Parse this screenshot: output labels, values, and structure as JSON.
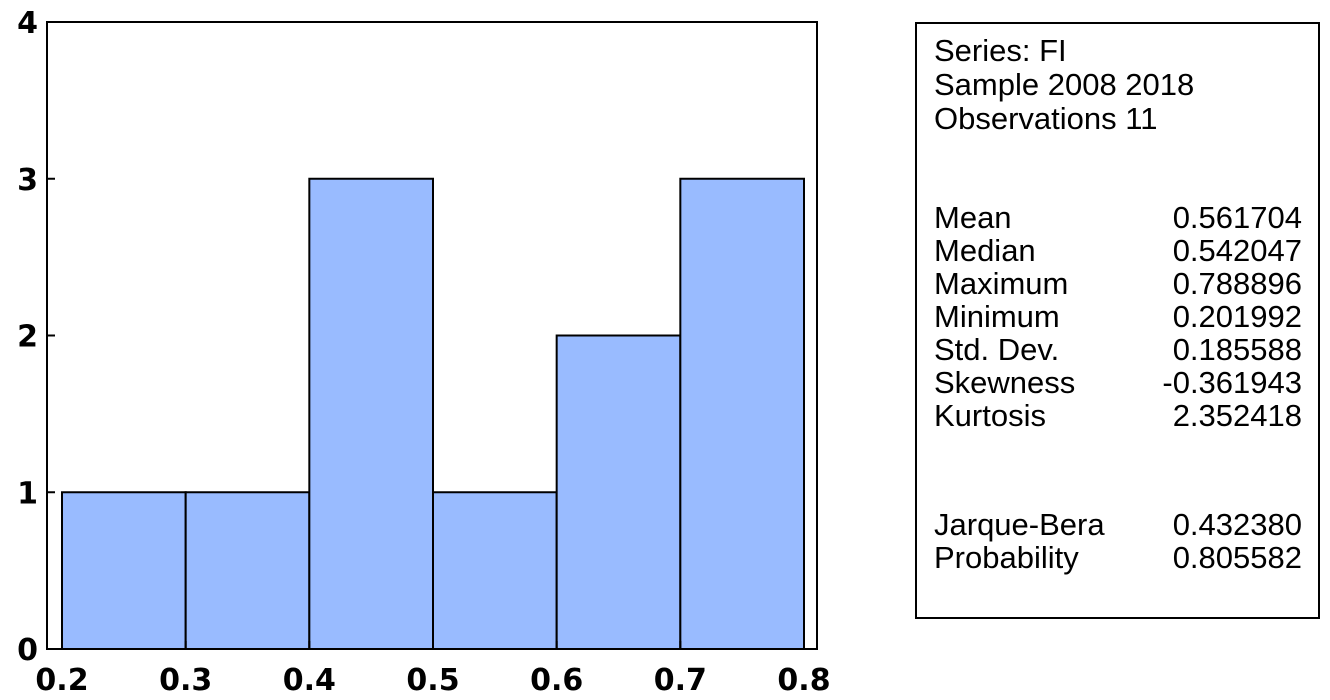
{
  "chart_data": {
    "type": "bar",
    "bins": [
      {
        "from": 0.2,
        "to": 0.3,
        "count": 1
      },
      {
        "from": 0.3,
        "to": 0.4,
        "count": 1
      },
      {
        "from": 0.4,
        "to": 0.5,
        "count": 3
      },
      {
        "from": 0.5,
        "to": 0.6,
        "count": 1
      },
      {
        "from": 0.6,
        "to": 0.7,
        "count": 2
      },
      {
        "from": 0.7,
        "to": 0.8,
        "count": 3
      }
    ],
    "xlim": [
      0.2,
      0.8
    ],
    "ylim": [
      0,
      4
    ],
    "x_ticks": [
      "0.2",
      "0.3",
      "0.4",
      "0.5",
      "0.6",
      "0.7",
      "0.8"
    ],
    "y_ticks": [
      "0",
      "1",
      "2",
      "3",
      "4"
    ],
    "bar_color": "#99bbff",
    "title": "",
    "xlabel": "",
    "ylabel": "",
    "grid": false,
    "legend": "none"
  },
  "stats": {
    "series_line": "Series: FI",
    "sample_line": "Sample 2008 2018",
    "observations_line": "Observations 11",
    "rows": [
      {
        "label": "Mean",
        "value": "0.561704"
      },
      {
        "label": "Median",
        "value": "0.542047"
      },
      {
        "label": "Maximum",
        "value": "0.788896"
      },
      {
        "label": "Minimum",
        "value": "0.201992"
      },
      {
        "label": "Std. Dev.",
        "value": "0.185588"
      },
      {
        "label": "Skewness",
        "value": "-0.361943"
      },
      {
        "label": "Kurtosis",
        "value": "2.352418"
      },
      {
        "label": "Jarque-Bera",
        "value": "0.432380"
      },
      {
        "label": "Probability",
        "value": "0.805582"
      }
    ]
  }
}
